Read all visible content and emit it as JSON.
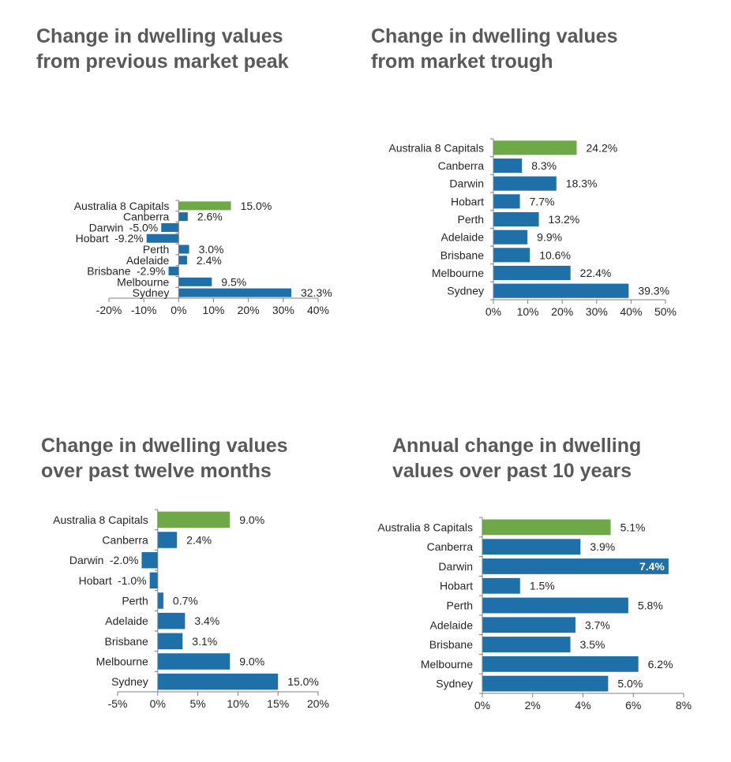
{
  "colors": {
    "accent": "#6fa846",
    "bar": "#1f6fa8",
    "axis": "#808080"
  },
  "chart_data": [
    {
      "type": "bar",
      "orientation": "horizontal",
      "title_lines": [
        "Change in dwelling values",
        "from previous market peak"
      ],
      "categories": [
        "Australia  8 Capitals",
        "Canberra",
        "Darwin",
        "Hobart",
        "Perth",
        "Adelaide",
        "Brisbane",
        "Melbourne",
        "Sydney"
      ],
      "values": [
        15.0,
        2.6,
        -5.0,
        -9.2,
        3.0,
        2.4,
        -2.9,
        9.5,
        32.3
      ],
      "value_labels": [
        "15.0%",
        "2.6%",
        "-5.0%",
        "-9.2%",
        "3.0%",
        "2.4%",
        "-2.9%",
        "9.5%",
        "32.3%"
      ],
      "highlight_index": 0,
      "xlim": [
        -20,
        40
      ],
      "xticks": [
        -20,
        -10,
        0,
        10,
        20,
        30,
        40
      ],
      "xtick_labels": [
        "-20%",
        "-10%",
        "0%",
        "10%",
        "20%",
        "30%",
        "40%"
      ],
      "grid": false,
      "legend": "none"
    },
    {
      "type": "bar",
      "orientation": "horizontal",
      "title_lines": [
        "Change in dwelling values",
        "from market trough"
      ],
      "categories": [
        "Australia  8 Capitals",
        "Canberra",
        "Darwin",
        "Hobart",
        "Perth",
        "Adelaide",
        "Brisbane",
        "Melbourne",
        "Sydney"
      ],
      "values": [
        24.2,
        8.3,
        18.3,
        7.7,
        13.2,
        9.9,
        10.6,
        22.4,
        39.3
      ],
      "value_labels": [
        "24.2%",
        "8.3%",
        "18.3%",
        "7.7%",
        "13.2%",
        "9.9%",
        "10.6%",
        "22.4%",
        "39.3%"
      ],
      "highlight_index": 0,
      "xlim": [
        0,
        50
      ],
      "xticks": [
        0,
        10,
        20,
        30,
        40,
        50
      ],
      "xtick_labels": [
        "0%",
        "10%",
        "20%",
        "30%",
        "40%",
        "50%"
      ],
      "grid": false,
      "legend": "none"
    },
    {
      "type": "bar",
      "orientation": "horizontal",
      "title_lines": [
        "Change in dwelling values",
        "over past twelve months"
      ],
      "categories": [
        "Australia  8 Capitals",
        "Canberra",
        "Darwin",
        "Hobart",
        "Perth",
        "Adelaide",
        "Brisbane",
        "Melbourne",
        "Sydney"
      ],
      "values": [
        9.0,
        2.4,
        -2.0,
        -1.0,
        0.7,
        3.4,
        3.1,
        9.0,
        15.0
      ],
      "value_labels": [
        "9.0%",
        "2.4%",
        "-2.0%",
        "-1.0%",
        "0.7%",
        "3.4%",
        "3.1%",
        "9.0%",
        "15.0%"
      ],
      "highlight_index": 0,
      "xlim": [
        -5,
        20
      ],
      "xticks": [
        -5,
        0,
        5,
        10,
        15,
        20
      ],
      "xtick_labels": [
        "-5%",
        "0%",
        "5%",
        "10%",
        "15%",
        "20%"
      ],
      "grid": false,
      "legend": "none"
    },
    {
      "type": "bar",
      "orientation": "horizontal",
      "title_lines": [
        "Annual change in dwelling",
        "values over past 10 years"
      ],
      "categories": [
        "Australia  8 Capitals",
        "Canberra",
        "Darwin",
        "Hobart",
        "Perth",
        "Adelaide",
        "Brisbane",
        "Melbourne",
        "Sydney"
      ],
      "values": [
        5.1,
        3.9,
        7.4,
        1.5,
        5.8,
        3.7,
        3.5,
        6.2,
        5.0
      ],
      "value_labels": [
        "5.1%",
        "3.9%",
        "7.4%",
        "1.5%",
        "5.8%",
        "3.7%",
        "3.5%",
        "6.2%",
        "5.0%"
      ],
      "highlight_index": 0,
      "inside_label_index": 2,
      "xlim": [
        0,
        8
      ],
      "xticks": [
        0,
        2,
        4,
        6,
        8
      ],
      "xtick_labels": [
        "0%",
        "2%",
        "4%",
        "6%",
        "8%"
      ],
      "grid": false,
      "legend": "none"
    }
  ]
}
